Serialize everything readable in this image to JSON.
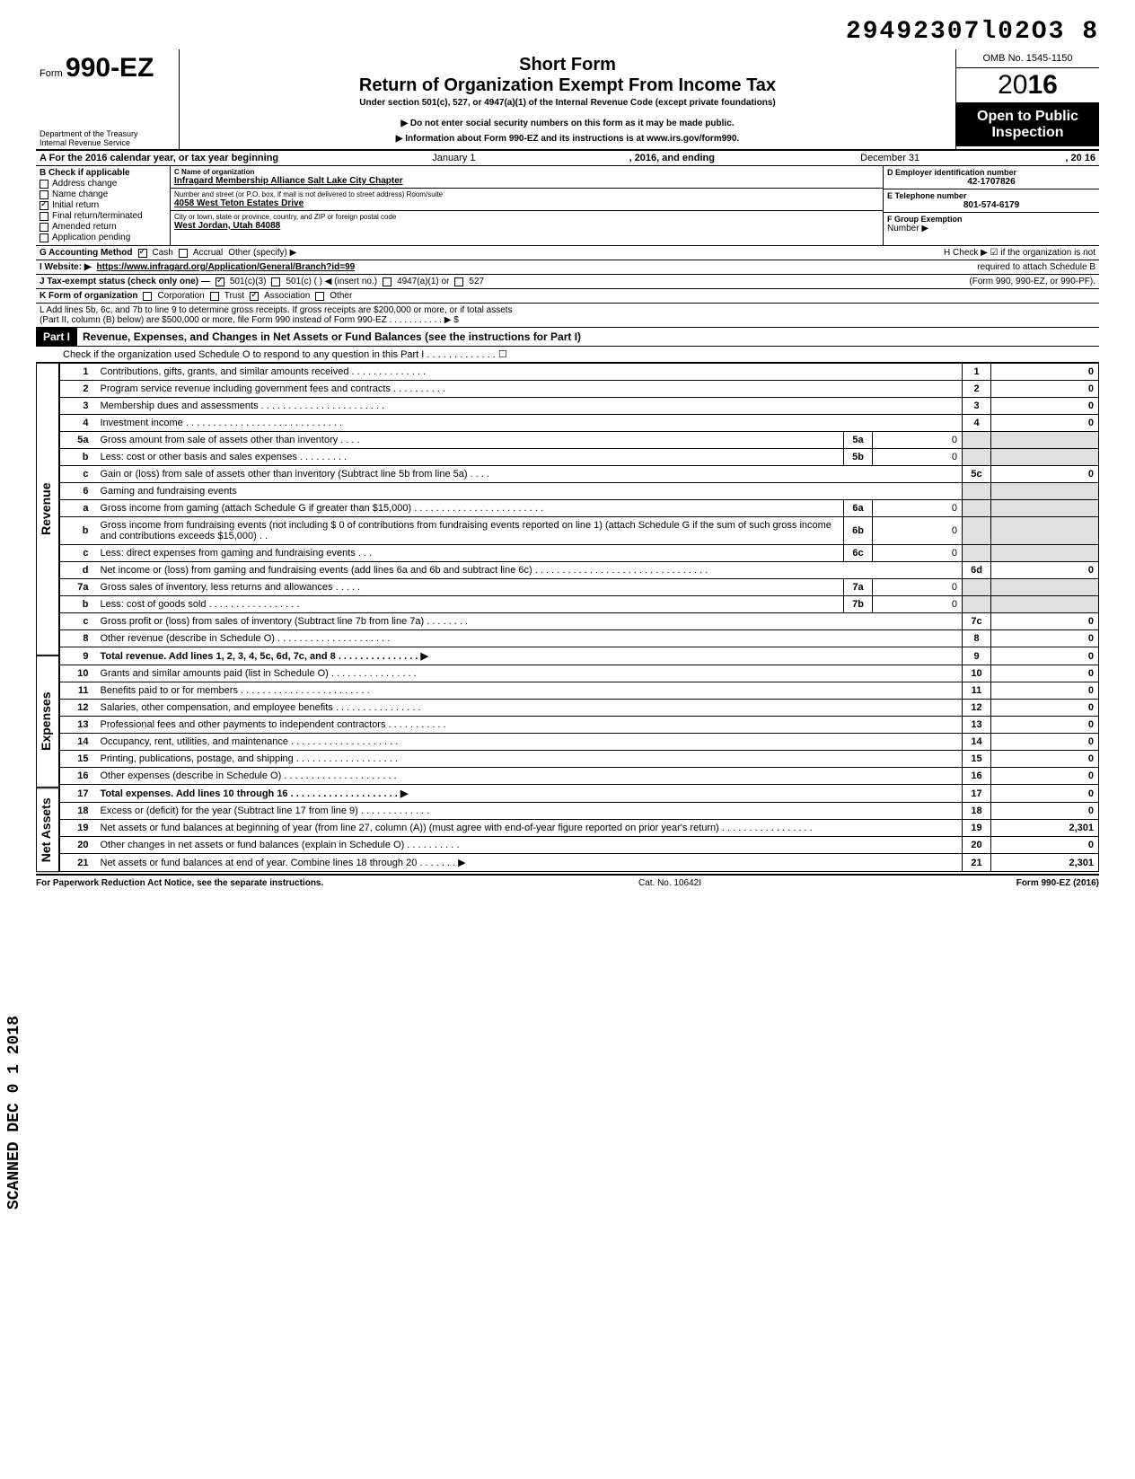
{
  "stamp_number": "29492307l02O3  8",
  "header": {
    "form_prefix": "Form",
    "form_number": "990-EZ",
    "dept": "Department of the Treasury\nInternal Revenue Service",
    "short_form": "Short Form",
    "title": "Return of Organization Exempt From Income Tax",
    "under": "Under section 501(c), 527, or 4947(a)(1) of the Internal Revenue Code (except private foundations)",
    "instr1": "Do not enter social security numbers on this form as it may be made public.",
    "instr2": "Information about Form 990-EZ and its instructions is at www.irs.gov/form990.",
    "omb": "OMB No. 1545-1150",
    "year_prefix": "20",
    "year_bold": "16",
    "open_pub1": "Open to Public",
    "open_pub2": "Inspection"
  },
  "row_a": {
    "text": "A  For the 2016 calendar year, or tax year beginning",
    "begin": "January 1",
    "mid": ", 2016, and ending",
    "end": "December 31",
    "endyr": ", 20   16"
  },
  "col_b": {
    "title": "B  Check if applicable",
    "items": [
      "Address change",
      "Name change",
      "Initial return",
      "Final return/terminated",
      "Amended return",
      "Application pending"
    ],
    "checked_idx": 2
  },
  "col_c": {
    "name_lbl": "C  Name of organization",
    "name": "Infragard Membership Alliance Salt Lake City Chapter",
    "addr_lbl": "Number and street (or P.O. box, if mail is not delivered to street address)          Room/suite",
    "addr": "4058 West Teton Estates Drive",
    "city_lbl": "City or town, state or province, country, and ZIP or foreign postal code",
    "city": "West Jordan, Utah 84088"
  },
  "col_de": {
    "d_lbl": "D Employer identification number",
    "d_val": "42-1707826",
    "e_lbl": "E Telephone number",
    "e_val": "801-574-6179",
    "f_lbl": "F Group Exemption",
    "f_val": "Number ▶"
  },
  "row_g": {
    "label": "G  Accounting Method",
    "cash": "Cash",
    "accrual": "Accrual",
    "other": "Other (specify) ▶",
    "h_text": "H  Check ▶ ☑ if the organization is not"
  },
  "row_i": {
    "label": "I   Website: ▶",
    "url": "https://www.infragard.org/Application/General/Branch?id=99",
    "h2": "required to attach Schedule B"
  },
  "row_j": {
    "label": "J  Tax-exempt status (check only one) —",
    "c3": "501(c)(3)",
    "c": "501(c) (          ) ◀ (insert no.)",
    "a1": "4947(a)(1) or",
    "527": "527",
    "note": "(Form 990, 990-EZ, or 990-PF)."
  },
  "row_k": {
    "label": "K  Form of organization",
    "corp": "Corporation",
    "trust": "Trust",
    "assoc": "Association",
    "other": "Other"
  },
  "row_l": {
    "text1": "L  Add lines 5b, 6c, and 7b to line 9 to determine gross receipts. If gross receipts are $200,000 or more, or if total assets",
    "text2": "(Part II, column (B) below) are $500,000 or more, file Form 990 instead of Form 990-EZ . . . . . . . . . . . ▶  $"
  },
  "part1": {
    "label": "Part I",
    "title": "Revenue, Expenses, and Changes in Net Assets or Fund Balances (see the instructions for Part I)",
    "sub": "Check if the organization used Schedule O to respond to any question in this Part I . . . . . . . . . . . . . ☐"
  },
  "sections": {
    "revenue": "Revenue",
    "expenses": "Expenses",
    "netassets": "Net Assets"
  },
  "lines": [
    {
      "n": "1",
      "d": "Contributions, gifts, grants, and similar amounts received . . . . . . . . . . . . . .",
      "c": "1",
      "v": "0"
    },
    {
      "n": "2",
      "d": "Program service revenue including government fees and contracts . . . . . . . . . .",
      "c": "2",
      "v": "0"
    },
    {
      "n": "3",
      "d": "Membership dues and assessments . . . . . . . . . . . . . . . . . . . . . . .",
      "c": "3",
      "v": "0"
    },
    {
      "n": "4",
      "d": "Investment income . . . . . . . . . . . . . . . . . . . . . . . . . . . . .",
      "c": "4",
      "v": "0"
    },
    {
      "n": "5a",
      "d": "Gross amount from sale of assets other than inventory . . . .",
      "sn": "5a",
      "sv": "0"
    },
    {
      "n": "b",
      "d": "Less: cost or other basis and sales expenses . . . . . . . . .",
      "sn": "5b",
      "sv": "0"
    },
    {
      "n": "c",
      "d": "Gain or (loss) from sale of assets other than inventory (Subtract line 5b from line 5a) . . . .",
      "c": "5c",
      "v": "0"
    },
    {
      "n": "6",
      "d": "Gaming and fundraising events"
    },
    {
      "n": "a",
      "d": "Gross income from gaming (attach Schedule G if greater than $15,000) . . . . . . . . . . . . . . . . . . . . . . . .",
      "sn": "6a",
      "sv": "0"
    },
    {
      "n": "b",
      "d": "Gross income from fundraising events (not including  $                    0 of contributions from fundraising events reported on line 1) (attach Schedule G if the sum of such gross income and contributions exceeds $15,000) . .",
      "sn": "6b",
      "sv": "0"
    },
    {
      "n": "c",
      "d": "Less: direct expenses from gaming and fundraising events . . .",
      "sn": "6c",
      "sv": "0"
    },
    {
      "n": "d",
      "d": "Net income or (loss) from gaming and fundraising events (add lines 6a and 6b and subtract line 6c) . . . . . . . . . . . . . . . . . . . . . . . . . . . . . . . .",
      "c": "6d",
      "v": "0"
    },
    {
      "n": "7a",
      "d": "Gross sales of inventory, less returns and allowances . . . . .",
      "sn": "7a",
      "sv": "0"
    },
    {
      "n": "b",
      "d": "Less: cost of goods sold . . . . . . . . . . . . . . . . .",
      "sn": "7b",
      "sv": "0"
    },
    {
      "n": "c",
      "d": "Gross profit or (loss) from sales of inventory (Subtract line 7b from line 7a) . . . . . . . .",
      "c": "7c",
      "v": "0"
    },
    {
      "n": "8",
      "d": "Other revenue (describe in Schedule O) . . . . . . . . . . . . . . . . . . . . .",
      "c": "8",
      "v": "0"
    },
    {
      "n": "9",
      "d": "Total revenue. Add lines 1, 2, 3, 4, 5c, 6d, 7c, and 8 . . . . . . . . . . . . . . . ▶",
      "c": "9",
      "v": "0",
      "bold": true
    }
  ],
  "exp_lines": [
    {
      "n": "10",
      "d": "Grants and similar amounts paid (list in Schedule O) . . . . . . . . . . . . . . . .",
      "c": "10",
      "v": "0"
    },
    {
      "n": "11",
      "d": "Benefits paid to or for members . . . . . . . . . . . . . . . . . . . . . . . .",
      "c": "11",
      "v": "0"
    },
    {
      "n": "12",
      "d": "Salaries, other compensation, and employee benefits . . . . . . . . . . . . . . . .",
      "c": "12",
      "v": "0"
    },
    {
      "n": "13",
      "d": "Professional fees and other payments to independent contractors . . . . . . . . . . .",
      "c": "13",
      "v": "0"
    },
    {
      "n": "14",
      "d": "Occupancy, rent, utilities, and maintenance . . . . . . . . . . . . . . . . . . . .",
      "c": "14",
      "v": "0"
    },
    {
      "n": "15",
      "d": "Printing, publications, postage, and shipping . . . . . . . . . . . . . . . . . . .",
      "c": "15",
      "v": "0"
    },
    {
      "n": "16",
      "d": "Other expenses (describe in Schedule O) . . . . . . . . . . . . . . . . . . . . .",
      "c": "16",
      "v": "0"
    },
    {
      "n": "17",
      "d": "Total expenses. Add lines 10 through 16 . . . . . . . . . . . . . . . . . . . . ▶",
      "c": "17",
      "v": "0",
      "bold": true
    }
  ],
  "na_lines": [
    {
      "n": "18",
      "d": "Excess or (deficit) for the year (Subtract line 17 from line 9) . . . . . . . . . . . . .",
      "c": "18",
      "v": "0"
    },
    {
      "n": "19",
      "d": "Net assets or fund balances at beginning of year (from line 27, column (A)) (must agree with end-of-year figure reported on prior year's return) . . . . . . . . . . . . . . . . .",
      "c": "19",
      "v": "2,301"
    },
    {
      "n": "20",
      "d": "Other changes in net assets or fund balances (explain in Schedule O) . . . . . . . . . .",
      "c": "20",
      "v": "0"
    },
    {
      "n": "21",
      "d": "Net assets or fund balances at end of year. Combine lines 18 through 20 . . . . . . . ▶",
      "c": "21",
      "v": "2,301"
    }
  ],
  "footer": {
    "left": "For Paperwork Reduction Act Notice, see the separate instructions.",
    "center": "Cat. No. 10642I",
    "right": "Form 990-EZ (2016)"
  },
  "scanned": "SCANNED DEC 0 1 2018"
}
